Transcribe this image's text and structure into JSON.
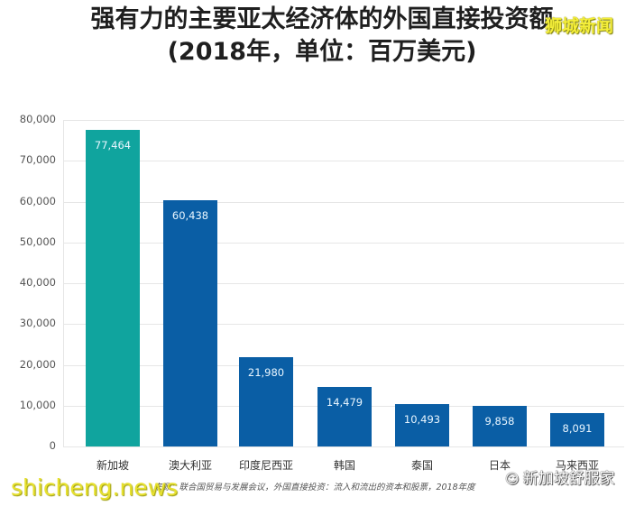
{
  "header": {
    "title_line1": "强有力的主要亚太经济体的外国直接投资额",
    "title_line2": "(2018年，单位：百万美元)"
  },
  "watermarks": {
    "top_right": "狮城新闻",
    "bottom_left": "shicheng.news",
    "bottom_right": "新加坡舒服家"
  },
  "footer": {
    "source": "来源：联合国贸易与发展会议，外国直接投资：流入和流出的资本和股票，2018年度"
  },
  "colors": {
    "highlight": "#10a49e",
    "default": "#0a5ea5",
    "grid": "#e6e6e6"
  },
  "y_ticks": [
    "80,000",
    "70,000",
    "60,000",
    "50,000",
    "40,000",
    "30,000",
    "20,000",
    "10,000",
    "0"
  ],
  "bars": [
    {
      "label": "新加坡",
      "value_label": "77,464"
    },
    {
      "label": "澳大利亚",
      "value_label": "60,438"
    },
    {
      "label": "印度尼西亚",
      "value_label": "21,980"
    },
    {
      "label": "韩国",
      "value_label": "14,479"
    },
    {
      "label": "泰国",
      "value_label": "10,493"
    },
    {
      "label": "日本",
      "value_label": "9,858"
    },
    {
      "label": "马来西亚",
      "value_label": "8,091"
    }
  ],
  "chart_data": {
    "type": "bar",
    "title": "强有力的主要亚太经济体的外国直接投资额 (2018年，单位：百万美元)",
    "categories": [
      "新加坡",
      "澳大利亚",
      "印度尼西亚",
      "韩国",
      "泰国",
      "日本",
      "马来西亚"
    ],
    "values": [
      77464,
      60438,
      21980,
      14479,
      10493,
      9858,
      8091
    ],
    "xlabel": "",
    "ylabel": "",
    "ylim": [
      0,
      80000
    ],
    "yticks": [
      0,
      10000,
      20000,
      30000,
      40000,
      50000,
      60000,
      70000,
      80000
    ],
    "grid": true,
    "legend": null,
    "highlighted_category": "新加坡",
    "data_labels": true,
    "source": "来源：联合国贸易与发展会议，外国直接投资：流入和流出的资本和股票，2018年度"
  }
}
